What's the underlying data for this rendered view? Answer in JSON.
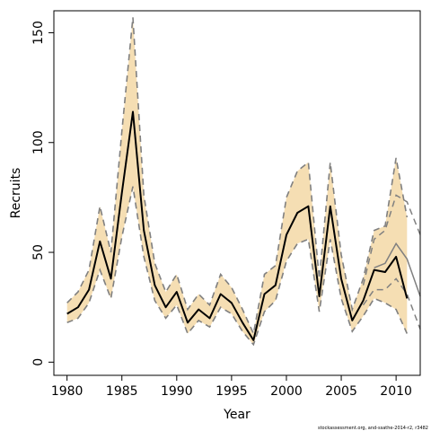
{
  "chart_data": {
    "type": "line",
    "xlabel": "Year",
    "ylabel": "Recruits",
    "xlim": [
      1978.8,
      2012.2
    ],
    "ylim": [
      -6,
      160
    ],
    "xticks": [
      1980,
      1985,
      1990,
      1995,
      2000,
      2005,
      2010
    ],
    "yticks": [
      0,
      50,
      100,
      150
    ],
    "grid": false,
    "legend": "none",
    "footnote": "stockassessment.org, and-ssathe-2014-r2, r3482",
    "colors": {
      "band": "#f5deb3",
      "main_line": "#000000",
      "bound_line": "#808080",
      "other_run": "#808080"
    },
    "x": [
      1980,
      1981,
      1982,
      1983,
      1984,
      1985,
      1986,
      1987,
      1988,
      1989,
      1990,
      1991,
      1992,
      1993,
      1994,
      1995,
      1996,
      1997,
      1998,
      1999,
      2000,
      2001,
      2002,
      2003,
      2004,
      2005,
      2006,
      2007,
      2008,
      2009,
      2010,
      2011
    ],
    "series": [
      {
        "role": "estimate",
        "values": [
          22,
          25,
          33,
          55,
          38,
          77,
          114,
          60,
          35,
          25,
          32,
          18,
          24,
          20,
          31,
          27,
          18,
          10,
          31,
          35,
          58,
          68,
          71,
          30,
          71,
          38,
          19,
          28,
          42,
          41,
          48,
          29
        ]
      },
      {
        "role": "lower",
        "values": [
          18,
          20,
          27,
          42,
          29,
          57,
          80,
          48,
          28,
          20,
          26,
          13,
          19,
          16,
          25,
          22,
          14,
          8,
          23,
          28,
          46,
          54,
          56,
          23,
          56,
          29,
          14,
          21,
          29,
          27,
          24,
          13
        ]
      },
      {
        "role": "upper",
        "values": [
          27,
          32,
          42,
          71,
          50,
          105,
          157,
          76,
          45,
          32,
          40,
          24,
          31,
          26,
          40,
          34,
          24,
          13,
          40,
          44,
          75,
          87,
          91,
          38,
          91,
          49,
          24,
          38,
          60,
          62,
          93,
          66
        ]
      },
      {
        "role": "other-run-estimate",
        "x": [
          2008,
          2009,
          2010,
          2011,
          2012.2
        ],
        "values": [
          43,
          45,
          54,
          47,
          30
        ]
      },
      {
        "role": "other-run-upper",
        "x": [
          2007,
          2008,
          2009,
          2010,
          2011,
          2012.2
        ],
        "values": [
          35,
          56,
          60,
          76,
          73,
          58
        ]
      },
      {
        "role": "other-run-lower",
        "x": [
          2007,
          2008,
          2009,
          2010,
          2011,
          2012.2
        ],
        "values": [
          26,
          33,
          33,
          38,
          31,
          15
        ]
      }
    ]
  }
}
